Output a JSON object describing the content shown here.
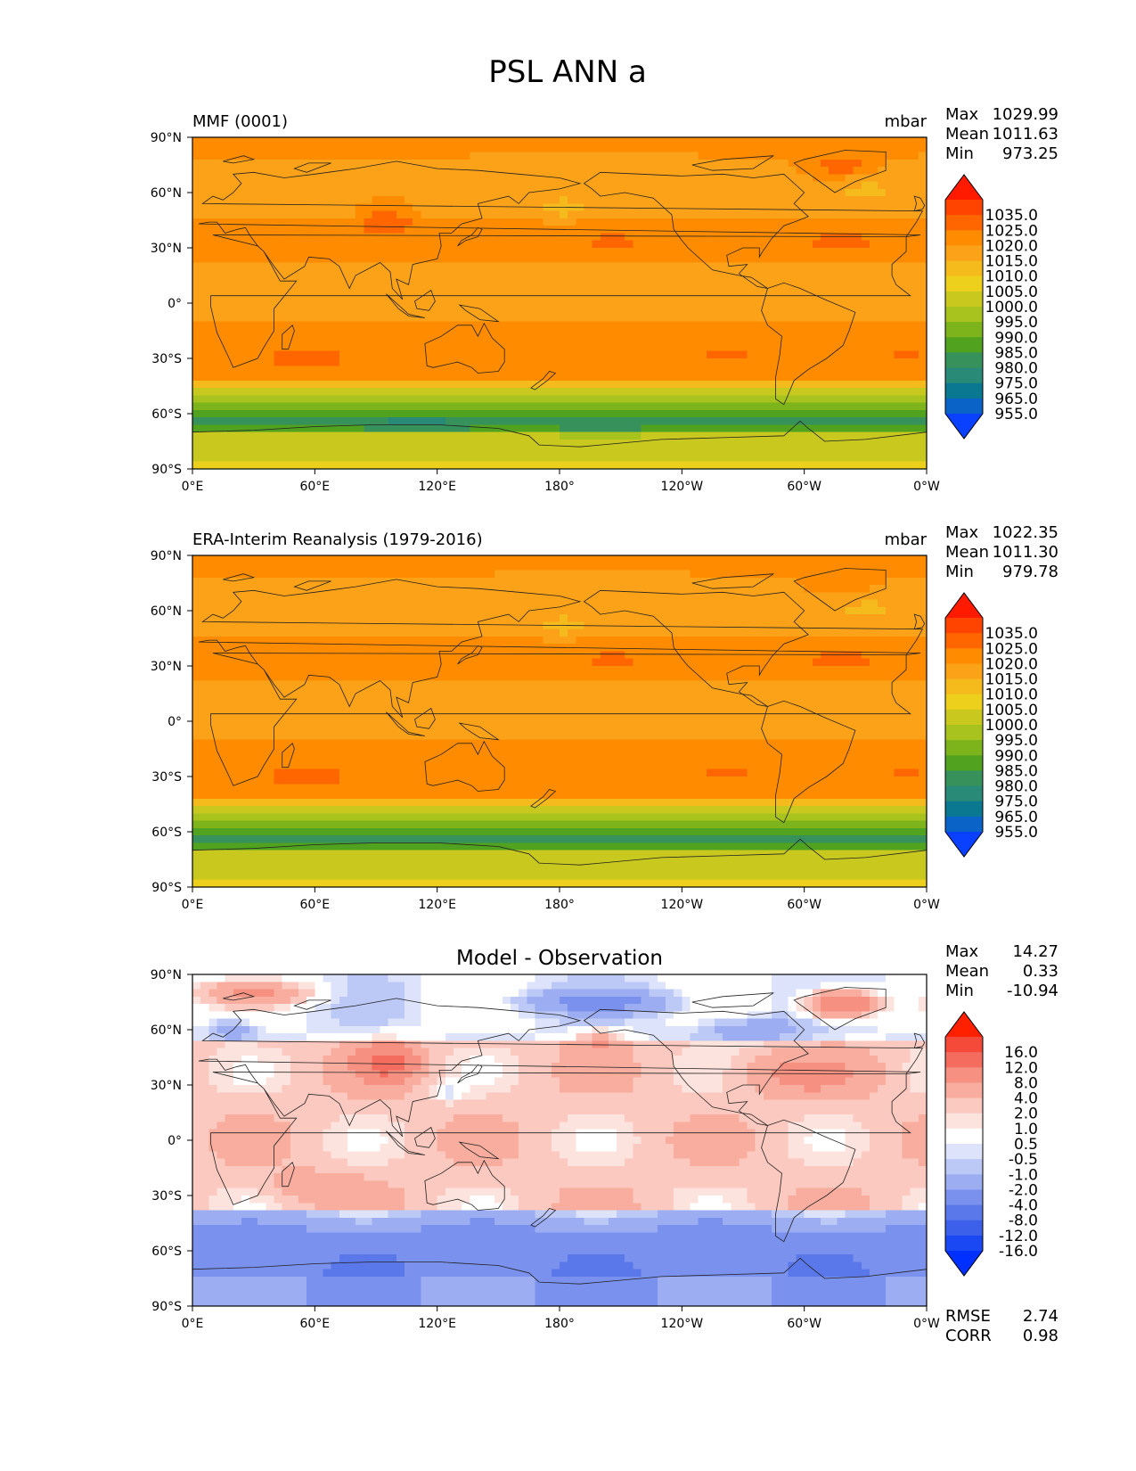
{
  "figure": {
    "title": "PSL ANN a"
  },
  "panels": [
    {
      "title_left": "MMF (0001)",
      "title_center": "",
      "units": "mbar",
      "stats": [
        {
          "label": "Max",
          "value": "1029.99"
        },
        {
          "label": "Mean",
          "value": "1011.63"
        },
        {
          "label": "Min",
          "value": "973.25"
        }
      ],
      "colorbar": "pressure",
      "field": "mmf"
    },
    {
      "title_left": "ERA-Interim Reanalysis (1979-2016)",
      "title_center": "",
      "units": "mbar",
      "stats": [
        {
          "label": "Max",
          "value": "1022.35"
        },
        {
          "label": "Mean",
          "value": "1011.30"
        },
        {
          "label": "Min",
          "value": "979.78"
        }
      ],
      "colorbar": "pressure",
      "field": "era"
    },
    {
      "title_left": "",
      "title_center": "Model - Observation",
      "units": "",
      "stats": [
        {
          "label": "Max",
          "value": "14.27"
        },
        {
          "label": "Mean",
          "value": "0.33"
        },
        {
          "label": "Min",
          "value": "-10.94"
        }
      ],
      "colorbar": "diff",
      "field": "diff",
      "extra_stats": [
        {
          "label": "RMSE",
          "value": "2.74"
        },
        {
          "label": "CORR",
          "value": "0.98"
        }
      ]
    }
  ],
  "axes": {
    "x_ticks": [
      "0°E",
      "60°E",
      "120°E",
      "180°",
      "120°W",
      "60°W",
      "0°W"
    ],
    "y_ticks": [
      "90°N",
      "60°N",
      "30°N",
      "0°",
      "30°S",
      "60°S",
      "90°S"
    ]
  },
  "colorbars": {
    "pressure": {
      "labels": [
        "1035.0",
        "1025.0",
        "1020.0",
        "1015.0",
        "1010.0",
        "1005.0",
        "1000.0",
        "995.0",
        "990.0",
        "985.0",
        "980.0",
        "975.0",
        "965.0",
        "955.0"
      ],
      "colors": [
        "#ff1a00",
        "#ff4400",
        "#ff6600",
        "#ff8c00",
        "#fba219",
        "#f5bb1c",
        "#ecd01c",
        "#c8c81e",
        "#a8c31e",
        "#7db31b",
        "#50a21f",
        "#36925a",
        "#2a8a78",
        "#0a7891",
        "#0a64c8",
        "#0a40ff"
      ]
    },
    "diff": {
      "labels": [
        "16.0",
        "12.0",
        "8.0",
        "4.0",
        "2.0",
        "1.0",
        "0.5",
        "-0.5",
        "-1.0",
        "-2.0",
        "-4.0",
        "-8.0",
        "-12.0",
        "-16.0"
      ],
      "colors": [
        "#ff2000",
        "#f54a3a",
        "#f36c5e",
        "#f69080",
        "#f8ad9f",
        "#fbc9bf",
        "#fde3dd",
        "#ffffff",
        "#dde3fa",
        "#bcc8f5",
        "#9cadf2",
        "#7a92ee",
        "#5b78ea",
        "#3d60ea",
        "#1a48f2",
        "#0030ff"
      ]
    }
  },
  "chart_data": [
    {
      "type": "heatmap",
      "title": "MMF (0001)",
      "units": "mbar",
      "x_ticks": [
        "0°E",
        "60°E",
        "120°E",
        "180°",
        "120°W",
        "60°W",
        "0°W"
      ],
      "y_ticks": [
        "90°N",
        "60°N",
        "30°N",
        "0°",
        "30°S",
        "60°S",
        "90°S"
      ],
      "xlim": [
        0,
        360
      ],
      "ylim": [
        -90,
        90
      ],
      "colorbar_levels": [
        955,
        965,
        975,
        980,
        985,
        990,
        995,
        1000,
        1005,
        1010,
        1015,
        1020,
        1025,
        1035
      ],
      "max": 1029.99,
      "mean": 1011.63,
      "min": 973.25
    },
    {
      "type": "heatmap",
      "title": "ERA-Interim Reanalysis (1979-2016)",
      "units": "mbar",
      "x_ticks": [
        "0°E",
        "60°E",
        "120°E",
        "180°",
        "120°W",
        "60°W",
        "0°W"
      ],
      "y_ticks": [
        "90°N",
        "60°N",
        "30°N",
        "0°",
        "30°S",
        "60°S",
        "90°S"
      ],
      "xlim": [
        0,
        360
      ],
      "ylim": [
        -90,
        90
      ],
      "colorbar_levels": [
        955,
        965,
        975,
        980,
        985,
        990,
        995,
        1000,
        1005,
        1010,
        1015,
        1020,
        1025,
        1035
      ],
      "max": 1022.35,
      "mean": 1011.3,
      "min": 979.78
    },
    {
      "type": "heatmap",
      "title": "Model - Observation",
      "x_ticks": [
        "0°E",
        "60°E",
        "120°E",
        "180°",
        "120°W",
        "60°W",
        "0°W"
      ],
      "y_ticks": [
        "90°N",
        "60°N",
        "30°N",
        "0°",
        "30°S",
        "60°S",
        "90°S"
      ],
      "xlim": [
        0,
        360
      ],
      "ylim": [
        -90,
        90
      ],
      "colorbar_levels": [
        -16,
        -12,
        -8,
        -4,
        -2,
        -1,
        -0.5,
        0.5,
        1,
        2,
        4,
        8,
        12,
        16
      ],
      "max": 14.27,
      "mean": 0.33,
      "min": -10.94,
      "rmse": 2.74,
      "corr": 0.98
    }
  ]
}
